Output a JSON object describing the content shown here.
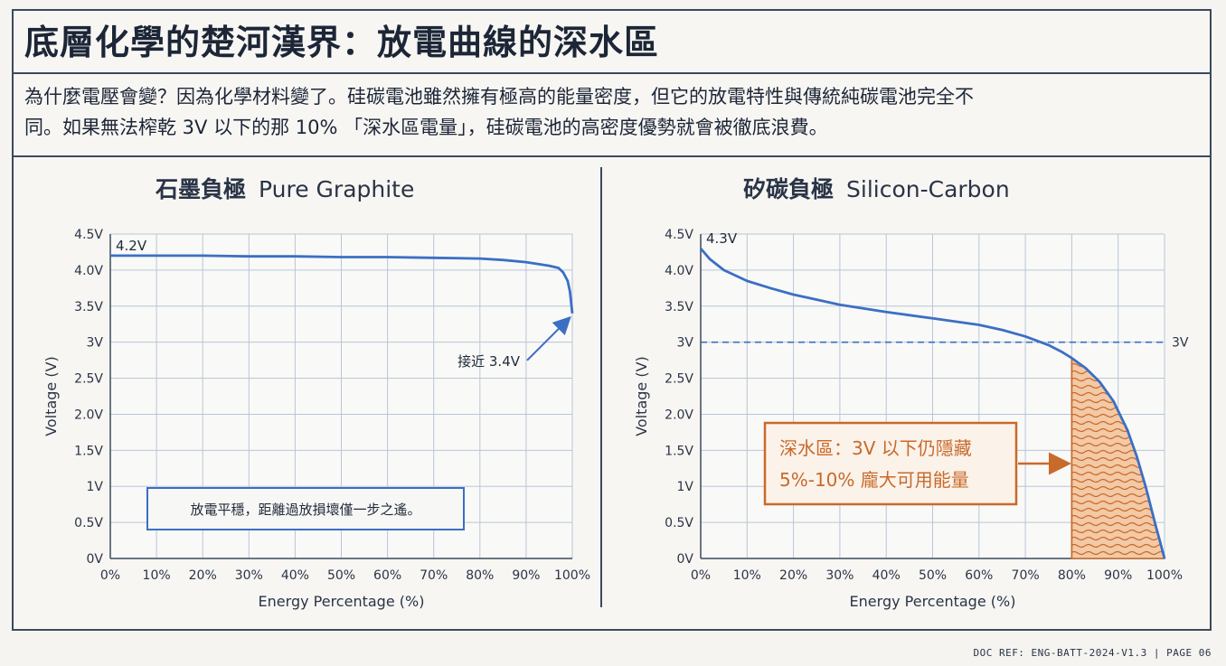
{
  "header": {
    "title": "底層化學的楚河漢界：放電曲線的深水區",
    "intro_line1": "為什麼電壓會變？因為化學材料變了。硅碳電池雖然擁有極高的能量密度，但它的放電特性與傳統純碳電池完全不",
    "intro_line2": "同。如果無法榨乾 3V 以下的那 10% 「深水區電量」，硅碳電池的高密度優勢就會被徹底浪費。"
  },
  "footer": {
    "text": "DOC REF: ENG-BATT-2024-V1.3 | PAGE 06"
  },
  "colors": {
    "line": "#3b6fc4",
    "accent": "#c86a2a",
    "grid": "#b9c6d9",
    "axis": "#3c4a5c",
    "hatch_fill": "#f3c9a6"
  },
  "chart_data": [
    {
      "type": "line",
      "title_zh": "石墨負極",
      "title_en": "Pure Graphite",
      "xlabel": "Energy Percentage (%)",
      "ylabel": "Voltage (V)",
      "xlim": [
        0,
        100
      ],
      "ylim": [
        0,
        4.5
      ],
      "x_ticks": [
        "0%",
        "10%",
        "20%",
        "30%",
        "40%",
        "50%",
        "60%",
        "70%",
        "80%",
        "90%",
        "100%"
      ],
      "y_ticks": [
        "0V",
        "0.5V",
        "1V",
        "1.5V",
        "2.0V",
        "2.5V",
        "3V",
        "3.5V",
        "4.0V",
        "4.5V"
      ],
      "grid": true,
      "series": [
        {
          "x": [
            0,
            10,
            20,
            30,
            40,
            50,
            60,
            70,
            80,
            85,
            90,
            93,
            95,
            97,
            98,
            99,
            99.5,
            100
          ],
          "y": [
            4.2,
            4.2,
            4.2,
            4.19,
            4.19,
            4.18,
            4.18,
            4.17,
            4.16,
            4.14,
            4.11,
            4.08,
            4.06,
            4.03,
            3.97,
            3.85,
            3.7,
            3.4
          ]
        }
      ],
      "annotations": [
        {
          "text": "4.2V",
          "x": 0,
          "y": 4.2
        },
        {
          "text": "接近 3.4V",
          "x": 100,
          "y": 3.4
        },
        {
          "text": "放電平穩，距離過放損壞僅一步之遙。"
        }
      ]
    },
    {
      "type": "line",
      "title_zh": "矽碳負極",
      "title_en": "Silicon-Carbon",
      "xlabel": "Energy Percentage (%)",
      "ylabel": "Voltage (V)",
      "xlim": [
        0,
        100
      ],
      "ylim": [
        0,
        4.5
      ],
      "x_ticks": [
        "0%",
        "10%",
        "20%",
        "30%",
        "40%",
        "50%",
        "60%",
        "70%",
        "80%",
        "90%",
        "100%"
      ],
      "y_ticks": [
        "0V",
        "0.5V",
        "1V",
        "1.5V",
        "2.0V",
        "2.5V",
        "3V",
        "3.5V",
        "4.0V",
        "4.5V"
      ],
      "grid": true,
      "series": [
        {
          "x": [
            0,
            2,
            5,
            10,
            15,
            20,
            30,
            40,
            50,
            60,
            65,
            70,
            75,
            78,
            80,
            83,
            86,
            89,
            92,
            94,
            96,
            98,
            99,
            100
          ],
          "y": [
            4.3,
            4.15,
            4.0,
            3.85,
            3.75,
            3.66,
            3.52,
            3.42,
            3.33,
            3.24,
            3.17,
            3.08,
            2.96,
            2.86,
            2.78,
            2.64,
            2.45,
            2.18,
            1.78,
            1.42,
            0.98,
            0.48,
            0.24,
            0.0
          ]
        }
      ],
      "reference_line": {
        "y": 3.0,
        "label": "3V"
      },
      "shaded_region": {
        "x_from": 80,
        "x_to": 100
      },
      "annotations": [
        {
          "text": "4.3V",
          "x": 0,
          "y": 4.3
        },
        {
          "text": "深水區：3V 以下仍隱藏"
        },
        {
          "text": "5%-10% 龐大可用能量"
        }
      ]
    }
  ]
}
